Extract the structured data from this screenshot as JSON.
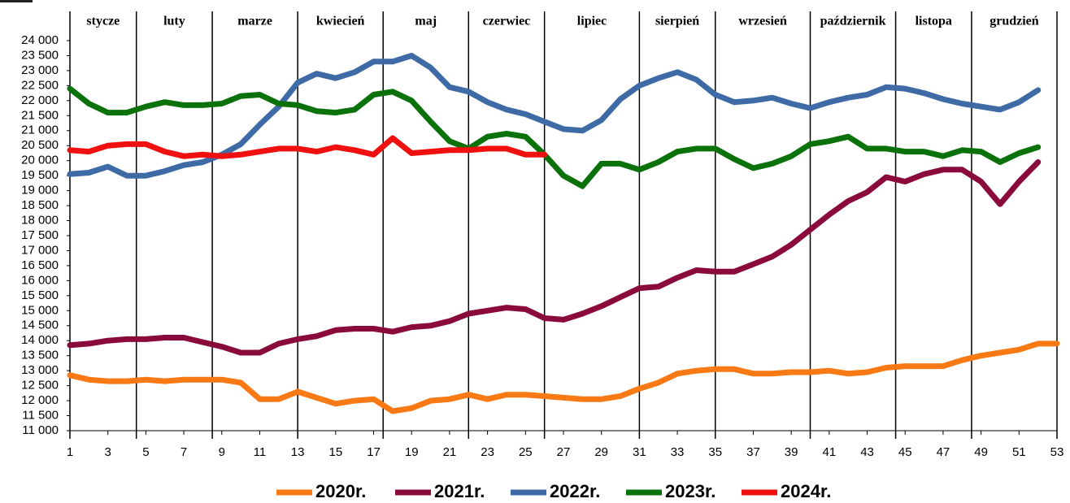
{
  "chart_data": {
    "type": "line",
    "x": [
      1,
      2,
      3,
      4,
      5,
      6,
      7,
      8,
      9,
      10,
      11,
      12,
      13,
      14,
      15,
      16,
      17,
      18,
      19,
      20,
      21,
      22,
      23,
      24,
      25,
      26,
      27,
      28,
      29,
      30,
      31,
      32,
      33,
      34,
      35,
      36,
      37,
      38,
      39,
      40,
      41,
      42,
      43,
      44,
      45,
      46,
      47,
      48,
      49,
      50,
      51,
      52,
      53
    ],
    "series": [
      {
        "name": "2020r.",
        "color": "#f97a14",
        "values": [
          12850,
          12700,
          12650,
          12650,
          12700,
          12650,
          12700,
          12700,
          12700,
          12600,
          12050,
          12050,
          12300,
          12100,
          11900,
          12000,
          12050,
          11650,
          11750,
          12000,
          12050,
          12200,
          12050,
          12200,
          12200,
          12150,
          12100,
          12050,
          12050,
          12150,
          12400,
          12600,
          12900,
          13000,
          13050,
          13050,
          12900,
          12900,
          12950,
          12950,
          13000,
          12900,
          12950,
          13100,
          13150,
          13150,
          13150,
          13350,
          13500,
          13600,
          13700,
          13900,
          13900
        ]
      },
      {
        "name": "2021r.",
        "color": "#8b0a3c",
        "values": [
          13850,
          13900,
          14000,
          14050,
          14050,
          14100,
          14100,
          13950,
          13800,
          13600,
          13600,
          13900,
          14050,
          14150,
          14350,
          14400,
          14400,
          14300,
          14450,
          14500,
          14650,
          14900,
          15000,
          15100,
          15050,
          14750,
          14700,
          14900,
          15150,
          15450,
          15750,
          15800,
          16100,
          16350,
          16300,
          16300,
          16550,
          16800,
          17200,
          17700,
          18200,
          18650,
          18950,
          19450,
          19300,
          19550,
          19700,
          19700,
          19300,
          18550,
          19300,
          19950,
          null
        ]
      },
      {
        "name": "2022r.",
        "color": "#3e6aa6",
        "values": [
          19550,
          19600,
          19800,
          19500,
          19500,
          19650,
          19850,
          19950,
          20200,
          20550,
          21200,
          21800,
          22600,
          22900,
          22750,
          22950,
          23300,
          23300,
          23500,
          23100,
          22450,
          22300,
          21950,
          21700,
          21550,
          21300,
          21050,
          21000,
          21350,
          22050,
          22500,
          22750,
          22950,
          22700,
          22200,
          21950,
          22000,
          22100,
          21900,
          21750,
          21950,
          22100,
          22200,
          22450,
          22400,
          22250,
          22050,
          21900,
          21800,
          21700,
          21950,
          22350,
          null
        ]
      },
      {
        "name": "2023r.",
        "color": "#0b720b",
        "values": [
          22400,
          21900,
          21600,
          21600,
          21800,
          21950,
          21850,
          21850,
          21900,
          22150,
          22200,
          21900,
          21850,
          21650,
          21600,
          21700,
          22200,
          22300,
          22000,
          21300,
          20650,
          20400,
          20800,
          20900,
          20800,
          20200,
          19500,
          19150,
          19900,
          19900,
          19700,
          19950,
          20300,
          20400,
          20400,
          20050,
          19750,
          19900,
          20150,
          20550,
          20650,
          20800,
          20400,
          20400,
          20300,
          20300,
          20150,
          20350,
          20300,
          19950,
          20250,
          20450,
          null
        ]
      },
      {
        "name": "2024r.",
        "color": "#f01010",
        "values": [
          20350,
          20300,
          20500,
          20550,
          20550,
          20300,
          20150,
          20200,
          20150,
          20200,
          20300,
          20400,
          20400,
          20300,
          20450,
          20350,
          20200,
          20750,
          20250,
          20300,
          20350,
          20350,
          20400,
          20400,
          20200,
          20200,
          null,
          null,
          null,
          null,
          null,
          null,
          null,
          null,
          null,
          null,
          null,
          null,
          null,
          null,
          null,
          null,
          null,
          null,
          null,
          null,
          null,
          null,
          null,
          null,
          null,
          null,
          null
        ]
      }
    ],
    "xlim": [
      1,
      53
    ],
    "xticks": [
      1,
      3,
      5,
      7,
      9,
      11,
      13,
      15,
      17,
      19,
      21,
      23,
      25,
      27,
      29,
      31,
      33,
      35,
      37,
      39,
      41,
      43,
      45,
      47,
      49,
      51,
      53
    ],
    "ylim": [
      11000,
      24000
    ],
    "yticks": [
      {
        "value": 11000,
        "label": "11 000"
      },
      {
        "value": 11500,
        "label": "11 500"
      },
      {
        "value": 12000,
        "label": "12 000"
      },
      {
        "value": 12500,
        "label": "12 500"
      },
      {
        "value": 13000,
        "label": "13 000"
      },
      {
        "value": 13500,
        "label": "13 500"
      },
      {
        "value": 14000,
        "label": "14 000"
      },
      {
        "value": 14500,
        "label": "14 500"
      },
      {
        "value": 15000,
        "label": "15 000"
      },
      {
        "value": 15500,
        "label": "15 500"
      },
      {
        "value": 16000,
        "label": "16 000"
      },
      {
        "value": 16500,
        "label": "16 500"
      },
      {
        "value": 17000,
        "label": "17 000"
      },
      {
        "value": 17500,
        "label": "17 500"
      },
      {
        "value": 18000,
        "label": "18 000"
      },
      {
        "value": 18500,
        "label": "18 500"
      },
      {
        "value": 19000,
        "label": "19 000"
      },
      {
        "value": 19500,
        "label": "19 500"
      },
      {
        "value": 20000,
        "label": "20 000"
      },
      {
        "value": 20500,
        "label": "20 500"
      },
      {
        "value": 21000,
        "label": "21 000"
      },
      {
        "value": 21500,
        "label": "21 500"
      },
      {
        "value": 22000,
        "label": "22 000"
      },
      {
        "value": 22500,
        "label": "22 500"
      },
      {
        "value": 23000,
        "label": "23 000"
      },
      {
        "value": 23500,
        "label": "23 500"
      },
      {
        "value": 24000,
        "label": "24 000"
      }
    ],
    "months": [
      "stycze",
      "luty",
      "marze",
      "kwiecień",
      "maj",
      "czerwiec",
      "lipiec",
      "sierpień",
      "wrzesień",
      "październik",
      "listopa",
      "grudzień"
    ],
    "month_bounds": [
      1,
      4.5,
      8.5,
      13,
      17.5,
      22,
      26,
      31,
      35,
      40,
      44.5,
      48.5,
      53
    ]
  }
}
